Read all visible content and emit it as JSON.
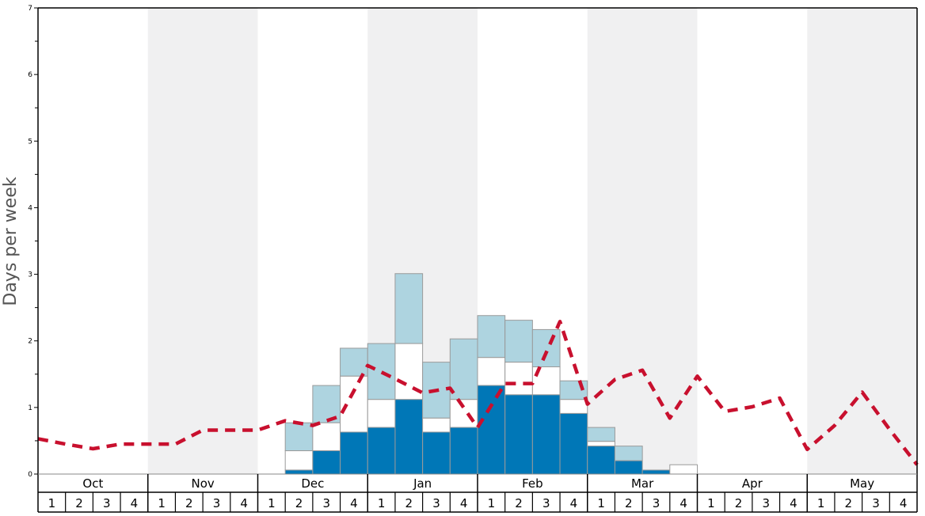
{
  "chart_data": {
    "type": "bar",
    "ylabel": "Days per week",
    "ylim": [
      0,
      7
    ],
    "y_ticks": [
      "0",
      "1",
      "2",
      "3",
      "4",
      "5",
      "6",
      "7"
    ],
    "months": [
      "Oct",
      "Nov",
      "Dec",
      "Jan",
      "Feb",
      "Mar",
      "Apr",
      "May"
    ],
    "week_labels": [
      "1",
      "2",
      "3",
      "4"
    ],
    "shaded_months": [
      "Nov",
      "Jan",
      "Mar",
      "May"
    ],
    "colors": {
      "dark": "#0077b7",
      "middle": "#ffffff",
      "light": "#aed4e0",
      "line": "#c8102e",
      "shade": "#f0f0f1"
    },
    "stacked_bars": [
      {
        "month": "Dec",
        "week": 2,
        "dark": 0.06,
        "middle": 0.35,
        "light": 0.77
      },
      {
        "month": "Dec",
        "week": 3,
        "dark": 0.35,
        "middle": 0.77,
        "light": 1.33
      },
      {
        "month": "Dec",
        "week": 4,
        "dark": 0.63,
        "middle": 1.47,
        "light": 1.89
      },
      {
        "month": "Jan",
        "week": 1,
        "dark": 0.7,
        "middle": 1.12,
        "light": 1.96
      },
      {
        "month": "Jan",
        "week": 2,
        "dark": 1.12,
        "middle": 1.96,
        "light": 3.01
      },
      {
        "month": "Jan",
        "week": 3,
        "dark": 0.63,
        "middle": 0.84,
        "light": 1.68
      },
      {
        "month": "Jan",
        "week": 4,
        "dark": 0.7,
        "middle": 1.12,
        "light": 2.03
      },
      {
        "month": "Feb",
        "week": 1,
        "dark": 1.33,
        "middle": 1.75,
        "light": 2.38
      },
      {
        "month": "Feb",
        "week": 2,
        "dark": 1.19,
        "middle": 1.68,
        "light": 2.31
      },
      {
        "month": "Feb",
        "week": 3,
        "dark": 1.19,
        "middle": 1.61,
        "light": 2.17
      },
      {
        "month": "Feb",
        "week": 4,
        "dark": 0.91,
        "middle": 1.12,
        "light": 1.4
      },
      {
        "month": "Mar",
        "week": 1,
        "dark": 0.42,
        "middle": 0.49,
        "light": 0.7
      },
      {
        "month": "Mar",
        "week": 2,
        "dark": 0.2,
        "middle": 0.2,
        "light": 0.42
      },
      {
        "month": "Mar",
        "week": 3,
        "dark": 0.06,
        "middle": 0.06,
        "light": 0.06
      },
      {
        "month": "Mar",
        "week": 4,
        "dark": 0.0,
        "middle": 0.14,
        "light": 0.14
      }
    ],
    "dashed_line": [
      0.53,
      0.45,
      0.38,
      0.45,
      0.45,
      0.45,
      0.66,
      0.66,
      0.66,
      0.8,
      0.73,
      0.87,
      1.63,
      1.43,
      1.22,
      1.29,
      0.7,
      1.36,
      1.36,
      2.29,
      1.05,
      1.42,
      1.56,
      0.84,
      1.47,
      0.94,
      1.01,
      1.14,
      0.37,
      0.73,
      1.23,
      0.67,
      0.14
    ]
  }
}
